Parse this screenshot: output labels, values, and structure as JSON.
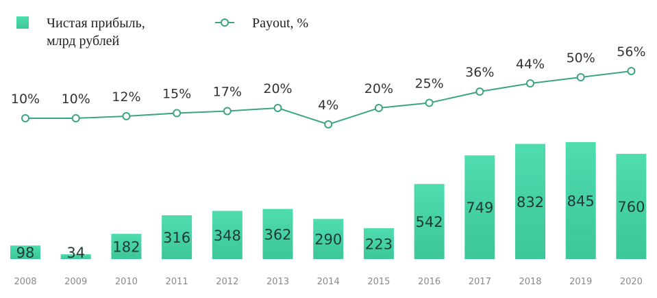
{
  "chart_data": {
    "type": "bar",
    "categories": [
      "2008",
      "2009",
      "2010",
      "2011",
      "2012",
      "2013",
      "2014",
      "2015",
      "2016",
      "2017",
      "2018",
      "2019",
      "2020"
    ],
    "series": [
      {
        "name": "Чистая прибыль, млрд рублей",
        "type": "bar",
        "values": [
          98,
          34,
          182,
          316,
          348,
          362,
          290,
          223,
          542,
          749,
          832,
          845,
          760
        ],
        "labels": [
          "98",
          "34",
          "182",
          "316",
          "348",
          "362",
          "290",
          "223",
          "542",
          "749",
          "832",
          "845",
          "760"
        ]
      },
      {
        "name": "Payout, %",
        "type": "line",
        "values": [
          10,
          10,
          12,
          15,
          17,
          20,
          4,
          20,
          25,
          36,
          44,
          50,
          56
        ],
        "labels": [
          "10%",
          "10%",
          "12%",
          "15%",
          "17%",
          "20%",
          "4%",
          "20%",
          "25%",
          "36%",
          "44%",
          "50%",
          "56%"
        ]
      }
    ],
    "legend": {
      "bar_line1": "Чистая прибыль,",
      "bar_line2": "млрд рублей",
      "line": "Payout, %",
      "placement": "top-left"
    },
    "colors": {
      "bar_top": "#4fdcaf",
      "bar_bottom": "#3cc69a",
      "line": "#3aa57f",
      "marker_fill": "#ffffff"
    },
    "ylim_bars": [
      0,
      900
    ],
    "ylim_payout": [
      0,
      60
    ],
    "grid": false
  }
}
